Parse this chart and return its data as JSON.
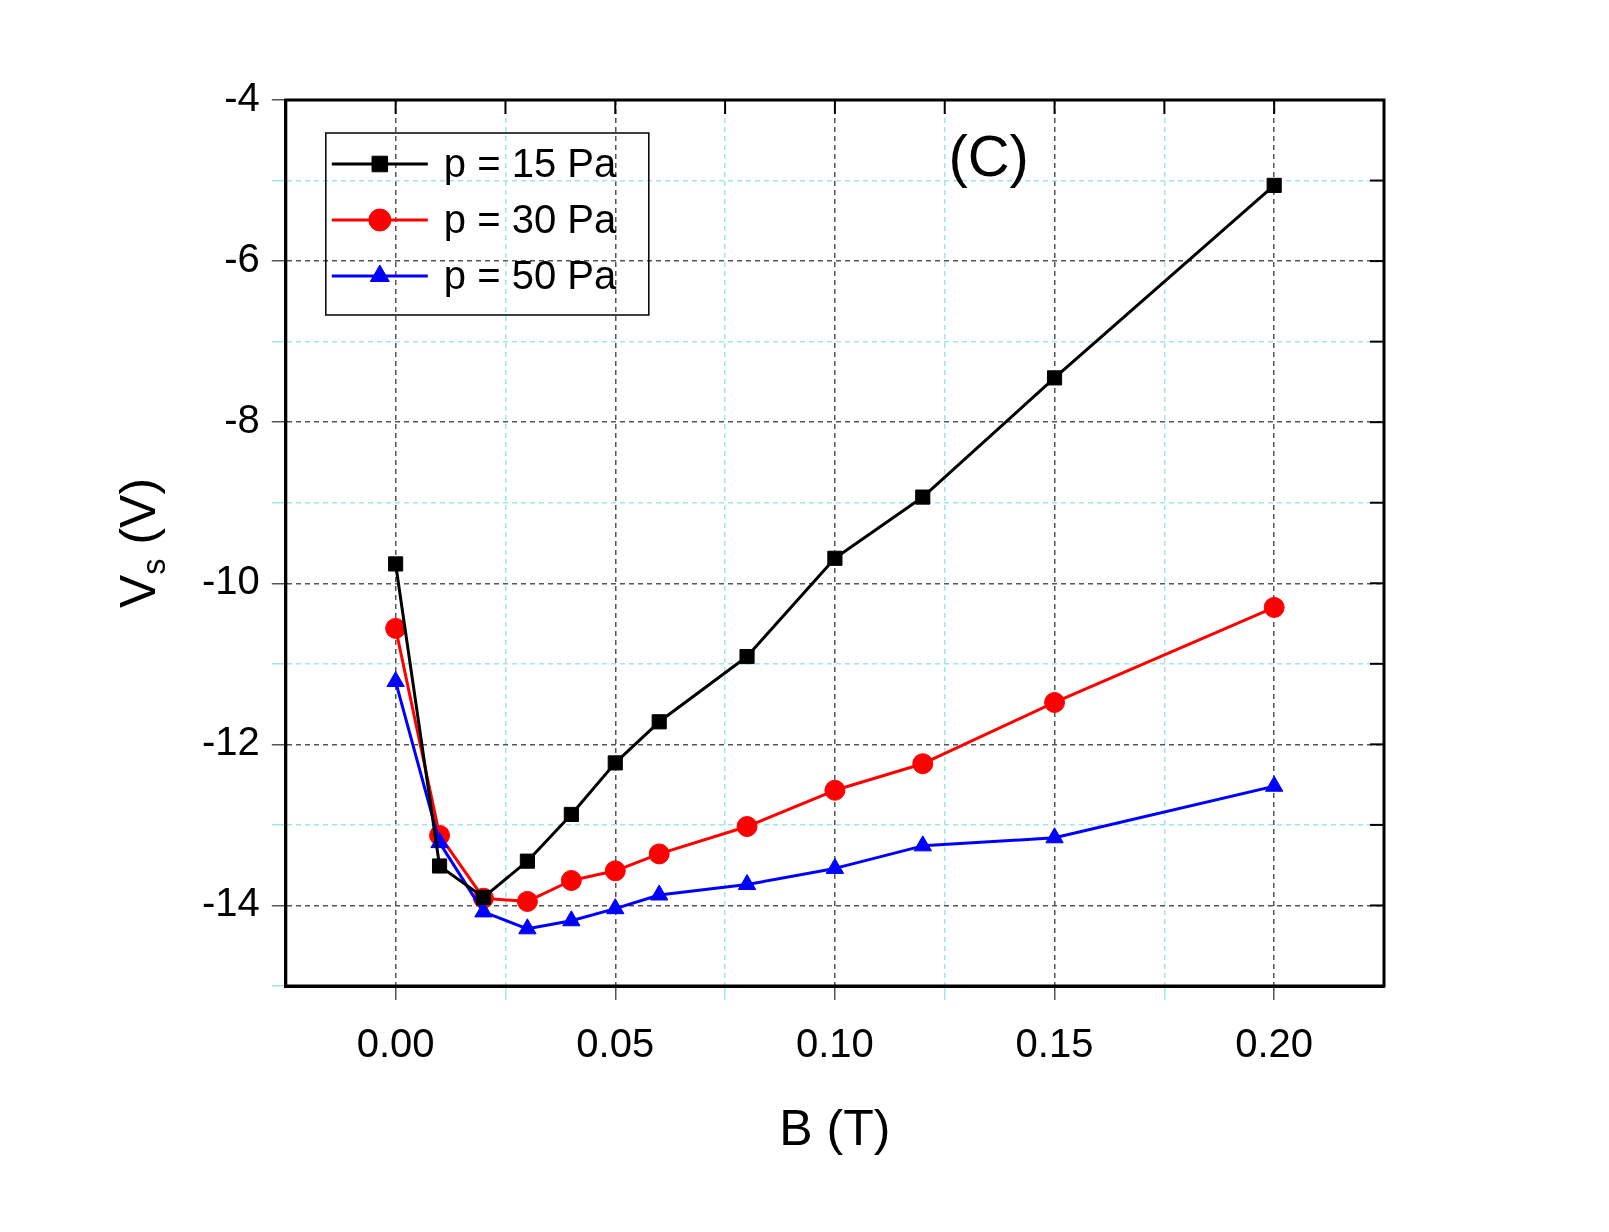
{
  "chart_data": {
    "type": "line",
    "xlabel": "B (T)",
    "ylabel": "V$_{s}$ (V)",
    "annotations": [
      "(C)"
    ],
    "xlim": [
      -0.025,
      0.225
    ],
    "xticks": [
      {
        "value": 0,
        "label": "0.00"
      },
      {
        "value": 0.025,
        "label": null
      },
      {
        "value": 0.05,
        "label": "0.05"
      },
      {
        "value": 0.075,
        "label": null
      },
      {
        "value": 0.1,
        "label": "0.10"
      },
      {
        "value": 0.125,
        "label": null
      },
      {
        "value": 0.15,
        "label": "0.15"
      },
      {
        "value": 0.175,
        "label": null
      },
      {
        "value": 0.2,
        "label": "0.20"
      }
    ],
    "ylim": [
      -15,
      -4
    ],
    "yticks": [
      {
        "value": -15,
        "label": null
      },
      -14,
      {
        "value": -13,
        "label": null
      },
      -12,
      {
        "value": -11,
        "label": null
      },
      -10,
      {
        "value": -9,
        "label": null
      },
      -8,
      {
        "value": -7,
        "label": null
      },
      -6,
      {
        "value": -5,
        "label": null
      },
      -4
    ],
    "grid": true,
    "legend": "top left",
    "line_style": "solid",
    "x": [
      0,
      0.01,
      0.02,
      0.03,
      0.04,
      0.05,
      0.06,
      0.08,
      0.1,
      0.12,
      0.15,
      0.2
    ],
    "series": [
      {
        "name": "p = 15 Pa",
        "color": "#000000",
        "marker": "square",
        "values": [
          -9.76,
          -13.51,
          -13.9,
          -13.45,
          -12.87,
          -12.23,
          -11.72,
          -10.91,
          -9.69,
          -8.93,
          -7.45,
          -5.06
        ]
      },
      {
        "name": "p = 30 Pa",
        "color": "#ff0000",
        "marker": "circle",
        "values": [
          -10.56,
          -13.13,
          -13.91,
          -13.95,
          -13.69,
          -13.57,
          -13.36,
          -13.02,
          -12.57,
          -12.24,
          -11.48,
          -10.3
        ]
      },
      {
        "name": "p = 50 Pa",
        "color": "#0000ff",
        "marker": "triangle",
        "values": [
          -11.22,
          -13.22,
          -14.08,
          -14.29,
          -14.19,
          -14.04,
          -13.87,
          -13.74,
          -13.54,
          -13.26,
          -13.16,
          -12.52
        ]
      }
    ]
  }
}
